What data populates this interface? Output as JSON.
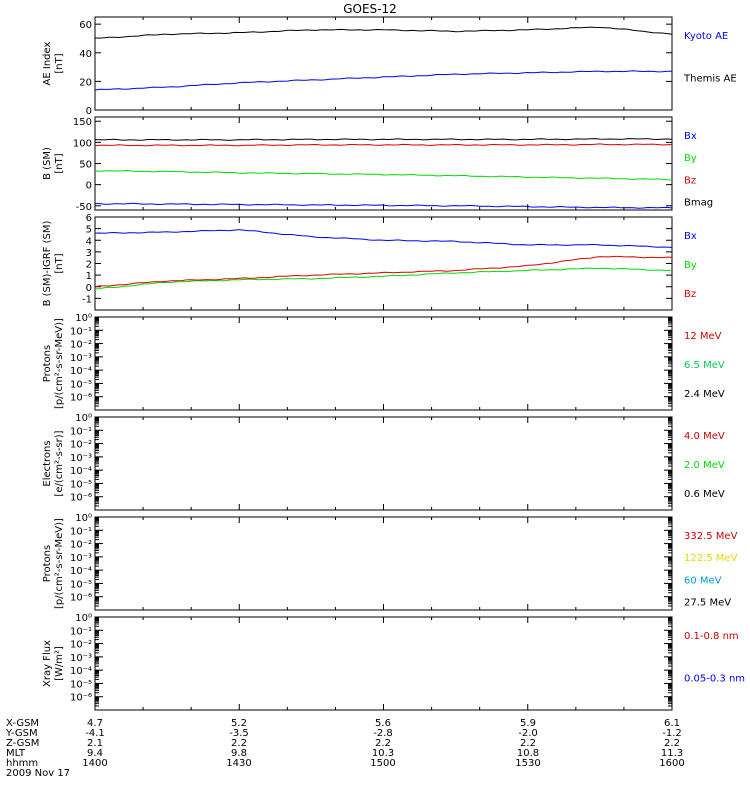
{
  "title": "GOES-12",
  "chart_data": [
    {
      "type": "line",
      "ylabel": [
        "AE Index",
        "[nT]"
      ],
      "ylim": [
        0,
        65
      ],
      "yticks": [
        0,
        20,
        40,
        60
      ],
      "x": [
        1400,
        1415,
        1430,
        1445,
        1500,
        1515,
        1530,
        1545,
        1600
      ],
      "series": [
        {
          "name": "Kyoto AE",
          "color": "#0000ff",
          "values": [
            14,
            16,
            19,
            21,
            23,
            25,
            26,
            27,
            27
          ]
        },
        {
          "name": "Themis AE",
          "color": "#000000",
          "values": [
            50,
            53,
            54,
            56,
            56,
            55,
            56,
            58,
            53
          ]
        }
      ]
    },
    {
      "type": "line",
      "ylabel": [
        "B (SM)",
        "[nT]"
      ],
      "ylim": [
        -60,
        160
      ],
      "yticks": [
        -50,
        0,
        50,
        100,
        150
      ],
      "x": [
        1400,
        1415,
        1430,
        1445,
        1500,
        1515,
        1530,
        1545,
        1600
      ],
      "series": [
        {
          "name": "Bx",
          "color": "#0000ff",
          "values": [
            -45,
            -46,
            -47,
            -48,
            -49,
            -50,
            -52,
            -54,
            -55
          ]
        },
        {
          "name": "By",
          "color": "#00dd00",
          "values": [
            33,
            31,
            28,
            26,
            24,
            21,
            18,
            15,
            12
          ]
        },
        {
          "name": "Bz",
          "color": "#dd0000",
          "values": [
            93,
            93,
            93,
            94,
            94,
            94,
            94,
            95,
            95
          ]
        },
        {
          "name": "Bmag",
          "color": "#000000",
          "values": [
            106,
            106,
            106,
            107,
            107,
            107,
            107,
            108,
            108
          ]
        }
      ]
    },
    {
      "type": "line",
      "ylabel": [
        "B (SM)-IGRF (SM)",
        "[nT]"
      ],
      "ylim": [
        -2,
        6
      ],
      "yticks": [
        -1,
        0,
        1,
        2,
        3,
        4,
        5,
        6
      ],
      "x": [
        1400,
        1415,
        1430,
        1445,
        1500,
        1515,
        1530,
        1545,
        1600
      ],
      "series": [
        {
          "name": "Bx",
          "color": "#0000ff",
          "values": [
            4.6,
            4.7,
            4.9,
            4.3,
            4.0,
            3.9,
            3.6,
            3.6,
            3.4
          ]
        },
        {
          "name": "By",
          "color": "#00dd00",
          "values": [
            -0.2,
            0.4,
            0.6,
            0.7,
            0.9,
            1.2,
            1.4,
            1.6,
            1.4
          ]
        },
        {
          "name": "Bz",
          "color": "#dd0000",
          "values": [
            0.0,
            0.5,
            0.7,
            1.0,
            1.2,
            1.4,
            1.8,
            2.6,
            2.5
          ]
        }
      ]
    },
    {
      "type": "line",
      "scale": "log",
      "ylabel": [
        "Protons",
        "[p/(cm²-s-sr-MeV)]"
      ],
      "ylim": [
        1e-07,
        1
      ],
      "ytick_labels": [
        "10⁰",
        "10⁻¹",
        "10⁻²",
        "10⁻³",
        "10⁻⁴",
        "10⁻⁵",
        "10⁻⁶"
      ],
      "series": [
        {
          "name": "12 MeV",
          "color": "#cc0000"
        },
        {
          "name": "6.5 MeV",
          "color": "#00cc55"
        },
        {
          "name": "2.4 MeV",
          "color": "#000000"
        }
      ]
    },
    {
      "type": "line",
      "scale": "log",
      "ylabel": [
        "Electrons",
        "[e/(cm²-s-sr)]"
      ],
      "ylim": [
        1e-07,
        1
      ],
      "ytick_labels": [
        "10⁰",
        "10⁻¹",
        "10⁻²",
        "10⁻³",
        "10⁻⁴",
        "10⁻⁵",
        "10⁻⁶"
      ],
      "series": [
        {
          "name": "4.0 MeV",
          "color": "#cc0000"
        },
        {
          "name": "2.0 MeV",
          "color": "#00dd00"
        },
        {
          "name": "0.6 MeV",
          "color": "#000000"
        }
      ]
    },
    {
      "type": "line",
      "scale": "log",
      "ylabel": [
        "Protons",
        "[p/(cm²-s-sr-MeV)]"
      ],
      "ylim": [
        1e-07,
        1
      ],
      "ytick_labels": [
        "10⁰",
        "10⁻¹",
        "10⁻²",
        "10⁻³",
        "10⁻⁴",
        "10⁻⁵",
        "10⁻⁶"
      ],
      "series": [
        {
          "name": "332.5 MeV",
          "color": "#cc0000"
        },
        {
          "name": "122.5 MeV",
          "color": "#e6d800"
        },
        {
          "name": "60 MeV",
          "color": "#0099dd"
        },
        {
          "name": "27.5 MeV",
          "color": "#000000"
        }
      ]
    },
    {
      "type": "line",
      "scale": "log",
      "ylabel": [
        "Xray Flux",
        "[W/m²]"
      ],
      "ylim": [
        1e-07,
        1
      ],
      "ytick_labels": [
        "10⁰",
        "10⁻¹",
        "10⁻²",
        "10⁻³",
        "10⁻⁴",
        "10⁻⁵",
        "10⁻⁶"
      ],
      "series": [
        {
          "name": "0.1-0.8 nm",
          "color": "#cc0000"
        },
        {
          "name": "0.05-0.3 nm",
          "color": "#0000ff"
        }
      ]
    }
  ],
  "footer": {
    "row_labels": [
      "X-GSM",
      "Y-GSM",
      "Z-GSM",
      "MLT",
      "hhmm"
    ],
    "columns": [
      [
        "4.7",
        "-4.1",
        "2.1",
        "9.4",
        "1400"
      ],
      [
        "5.2",
        "-3.5",
        "2.2",
        "9.8",
        "1430"
      ],
      [
        "5.6",
        "-2.8",
        "2.2",
        "10.3",
        "1500"
      ],
      [
        "5.9",
        "-2.0",
        "2.2",
        "10.8",
        "1530"
      ],
      [
        "6.1",
        "-1.2",
        "2.2",
        "11.3",
        "1600"
      ]
    ],
    "date": "2009 Nov 17"
  }
}
